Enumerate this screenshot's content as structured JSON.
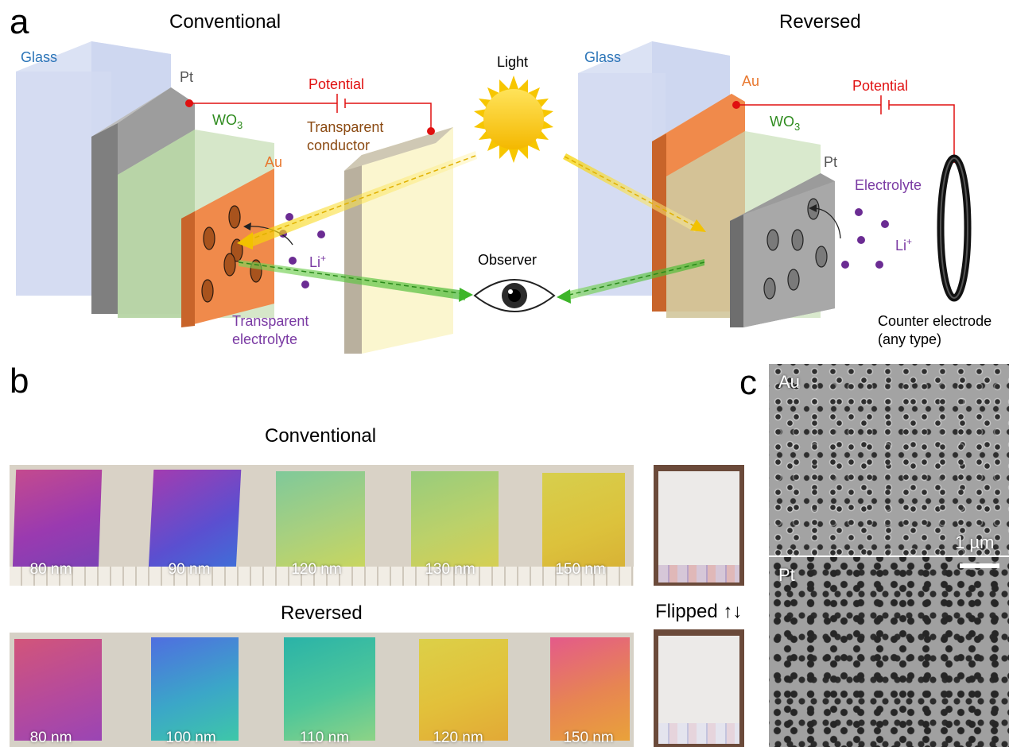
{
  "panel_a": {
    "letter": "a",
    "conventional_title": "Conventional",
    "reversed_title": "Reversed",
    "left": {
      "glass": "Glass",
      "pt": "Pt",
      "wo3_main": "WO",
      "wo3_sub": "3",
      "au": "Au",
      "potential": "Potential",
      "transparent_conductor_1": "Transparent",
      "transparent_conductor_2": "conductor",
      "li_main": "Li",
      "li_sup": "+",
      "electrolyte_1": "Transparent",
      "electrolyte_2": "electrolyte"
    },
    "center": {
      "light": "Light",
      "observer": "Observer"
    },
    "right": {
      "glass": "Glass",
      "au": "Au",
      "wo3_main": "WO",
      "wo3_sub": "3",
      "pt": "Pt",
      "potential": "Potential",
      "electrolyte": "Electrolyte",
      "li_main": "Li",
      "li_sup": "+",
      "counter_1": "Counter electrode",
      "counter_2": "(any type)"
    },
    "colors": {
      "glass": "#c9d3ee",
      "pt": "#8d8d8d",
      "wo3": "#c2dcb2",
      "au": "#f08a4b",
      "potential": "#e01010",
      "green_label": "#2e8b1e",
      "blue_label": "#2c75b8",
      "purple_label": "#7a3aa3",
      "brown_label": "#8b4a12"
    }
  },
  "panel_b": {
    "letter": "b",
    "conventional_title": "Conventional",
    "reversed_title": "Reversed",
    "flipped_label": "Flipped ↑↓",
    "conventional_samples": [
      "80 nm",
      "90 nm",
      "120 nm",
      "130 nm",
      "150 nm"
    ],
    "reversed_samples": [
      "80 nm",
      "100 nm",
      "110 nm",
      "120 nm",
      "150 nm"
    ]
  },
  "panel_c": {
    "letter": "c",
    "top_label": "Au",
    "bottom_label": "Pt",
    "scale_label": "1 µm"
  }
}
